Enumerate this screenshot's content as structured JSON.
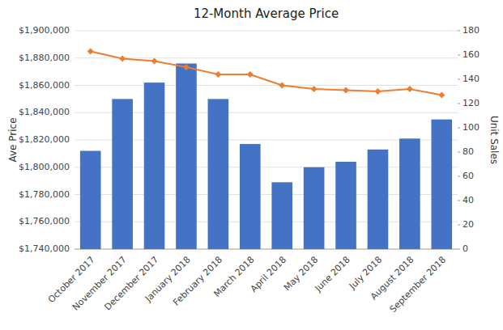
{
  "chart_data": {
    "type": "bar",
    "title": "12-Month Average Price",
    "ylabel": "Ave Price",
    "y2label": "Unit Sales",
    "categories": [
      "October 2017",
      "November 2017",
      "December 2017",
      "January 2018",
      "February 2018",
      "March 2018",
      "April 2018",
      "May 2018",
      "June 2018",
      "July 2018",
      "August 2018",
      "September 2018"
    ],
    "series": [
      {
        "type": "bar",
        "color": "#4472C4",
        "values": [
          1812000,
          1850000,
          1862000,
          1876000,
          1850000,
          1817000,
          1789000,
          1800000,
          1804000,
          1813000,
          1821000,
          1835000
        ]
      },
      {
        "type": "line",
        "axis": "y2",
        "color": "#ED7D31",
        "marker": "diamond",
        "values": [
          163,
          157,
          155,
          150,
          144,
          144,
          135,
          132,
          131,
          130,
          132,
          127
        ]
      }
    ],
    "ylim": [
      1740000,
      1900000
    ],
    "yticks": [
      {
        "value": 1740000,
        "label": "$1,740,000"
      },
      {
        "value": 1760000,
        "label": "$1,760,000"
      },
      {
        "value": 1780000,
        "label": "$1,780,000"
      },
      {
        "value": 1800000,
        "label": "$1,800,000"
      },
      {
        "value": 1820000,
        "label": "$1,820,000"
      },
      {
        "value": 1840000,
        "label": "$1,840,000"
      },
      {
        "value": 1860000,
        "label": "$1,860,000"
      },
      {
        "value": 1880000,
        "label": "$1,880,000"
      },
      {
        "value": 1900000,
        "label": "$1,900,000"
      }
    ],
    "y2lim": [
      0,
      180
    ],
    "y2ticks": [
      0,
      20,
      40,
      60,
      80,
      100,
      120,
      140,
      160,
      180
    ],
    "grid": true
  }
}
